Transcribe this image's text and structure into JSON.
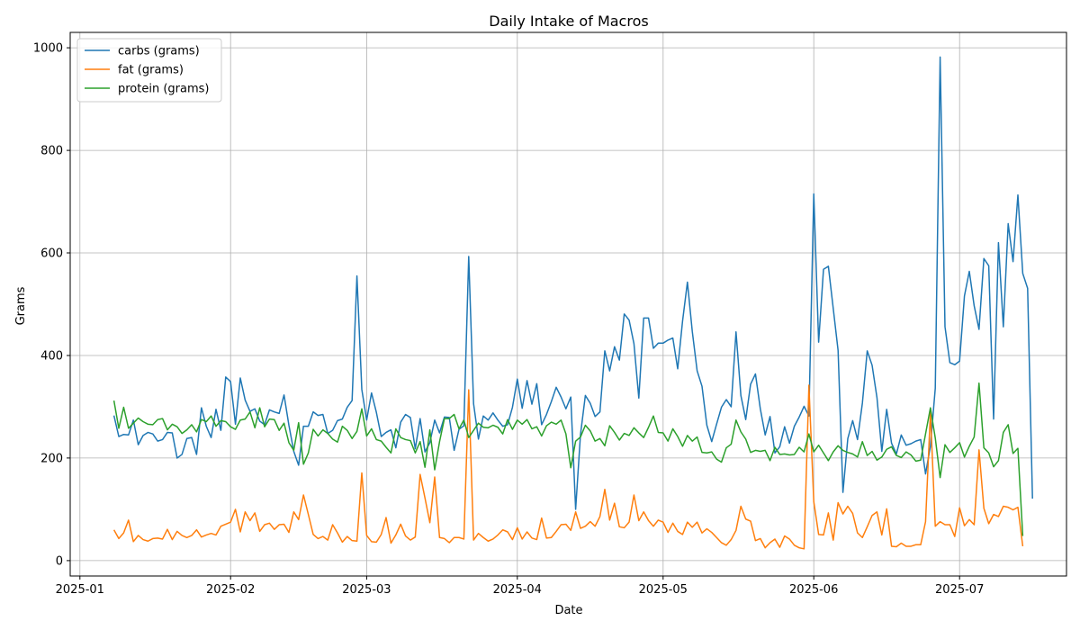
{
  "chart_data": {
    "type": "line",
    "title": "Daily Intake of Macros",
    "xlabel": "Date",
    "ylabel": "Grams",
    "x_start": "2025-01-08",
    "x_end": "2025-07-14",
    "xlim": [
      "2024-12-30",
      "2025-07-23"
    ],
    "ylim": [
      -30,
      1030
    ],
    "x_ticks": [
      {
        "date": "2025-01-01",
        "label": "2025-01"
      },
      {
        "date": "2025-02-01",
        "label": "2025-02"
      },
      {
        "date": "2025-03-01",
        "label": "2025-03"
      },
      {
        "date": "2025-04-01",
        "label": "2025-04"
      },
      {
        "date": "2025-05-01",
        "label": "2025-05"
      },
      {
        "date": "2025-06-01",
        "label": "2025-06"
      },
      {
        "date": "2025-07-01",
        "label": "2025-07"
      }
    ],
    "y_ticks": [
      0,
      200,
      400,
      600,
      800,
      1000
    ],
    "grid": true,
    "legend_position": "top-left",
    "series": [
      {
        "name": "carbs (grams)",
        "color": "#1f77b4",
        "values": [
          283,
          242,
          246,
          245,
          274,
          226,
          244,
          250,
          247,
          233,
          236,
          250,
          249,
          200,
          207,
          238,
          240,
          207,
          298,
          262,
          240,
          295,
          254,
          358,
          349,
          266,
          356,
          313,
          291,
          296,
          272,
          265,
          294,
          290,
          287,
          323,
          264,
          213,
          186,
          262,
          262,
          290,
          283,
          285,
          248,
          254,
          273,
          276,
          299,
          312,
          555,
          334,
          274,
          327,
          289,
          242,
          250,
          255,
          220,
          270,
          285,
          279,
          218,
          277,
          212,
          230,
          274,
          249,
          280,
          279,
          215,
          256,
          263,
          593,
          306,
          237,
          282,
          274,
          288,
          274,
          262,
          265,
          299,
          354,
          297,
          351,
          305,
          345,
          265,
          285,
          310,
          338,
          319,
          296,
          319,
          100,
          246,
          322,
          307,
          281,
          290,
          409,
          370,
          417,
          391,
          481,
          469,
          423,
          317,
          473,
          473,
          414,
          424,
          424,
          430,
          434,
          374,
          467,
          543,
          447,
          370,
          340,
          264,
          232,
          266,
          299,
          314,
          300,
          446,
          322,
          275,
          344,
          364,
          296,
          245,
          281,
          210,
          222,
          261,
          229,
          262,
          280,
          301,
          282,
          715,
          426,
          568,
          574,
          492,
          410,
          133,
          238,
          273,
          236,
          307,
          409,
          381,
          318,
          213,
          295,
          229,
          208,
          245,
          225,
          228,
          233,
          236,
          169,
          223,
          336,
          982,
          456,
          386,
          382,
          389,
          516,
          564,
          497,
          451,
          589,
          575,
          276,
          620,
          456,
          657,
          583,
          713,
          560,
          531,
          121
        ]
      },
      {
        "name": "fat (grams)",
        "color": "#ff7f0e",
        "values": [
          60,
          43,
          54,
          79,
          37,
          49,
          41,
          38,
          43,
          44,
          42,
          61,
          41,
          57,
          49,
          45,
          49,
          60,
          46,
          50,
          53,
          50,
          67,
          71,
          75,
          100,
          56,
          95,
          78,
          93,
          57,
          70,
          73,
          61,
          70,
          71,
          55,
          95,
          80,
          128,
          90,
          51,
          43,
          47,
          40,
          70,
          54,
          36,
          47,
          39,
          38,
          171,
          49,
          37,
          36,
          51,
          84,
          34,
          50,
          71,
          48,
          40,
          46,
          168,
          122,
          74,
          163,
          45,
          43,
          35,
          45,
          45,
          42,
          333,
          40,
          53,
          45,
          38,
          42,
          50,
          60,
          56,
          41,
          64,
          42,
          56,
          44,
          41,
          83,
          44,
          45,
          57,
          70,
          71,
          59,
          95,
          63,
          67,
          76,
          67,
          86,
          139,
          79,
          112,
          66,
          64,
          75,
          128,
          78,
          95,
          78,
          67,
          79,
          75,
          55,
          73,
          57,
          51,
          75,
          65,
          75,
          54,
          62,
          55,
          45,
          35,
          30,
          41,
          59,
          106,
          81,
          77,
          39,
          43,
          25,
          35,
          42,
          26,
          48,
          42,
          30,
          25,
          23,
          342,
          115,
          51,
          50,
          93,
          40,
          113,
          91,
          106,
          92,
          54,
          45,
          66,
          88,
          95,
          50,
          101,
          28,
          27,
          34,
          28,
          28,
          31,
          31,
          76,
          289,
          67,
          76,
          70,
          70,
          47,
          103,
          68,
          80,
          70,
          216,
          102,
          72,
          90,
          86,
          106,
          104,
          99,
          104,
          28
        ]
      },
      {
        "name": "protein (grams)",
        "color": "#2ca02c",
        "values": [
          312,
          258,
          299,
          258,
          268,
          278,
          271,
          266,
          265,
          275,
          277,
          255,
          266,
          261,
          248,
          255,
          265,
          251,
          275,
          271,
          282,
          262,
          273,
          271,
          261,
          256,
          274,
          276,
          290,
          259,
          298,
          261,
          276,
          275,
          254,
          268,
          230,
          215,
          269,
          188,
          210,
          256,
          243,
          255,
          248,
          237,
          231,
          262,
          254,
          238,
          252,
          296,
          243,
          257,
          236,
          233,
          221,
          210,
          257,
          240,
          236,
          234,
          210,
          232,
          182,
          255,
          177,
          232,
          277,
          277,
          285,
          257,
          274,
          240,
          254,
          268,
          260,
          259,
          264,
          260,
          247,
          275,
          256,
          274,
          266,
          275,
          257,
          261,
          243,
          263,
          270,
          266,
          274,
          247,
          181,
          233,
          241,
          264,
          253,
          233,
          238,
          224,
          263,
          250,
          235,
          248,
          244,
          259,
          249,
          240,
          260,
          282,
          250,
          249,
          233,
          257,
          242,
          223,
          244,
          233,
          241,
          211,
          210,
          212,
          198,
          192,
          220,
          227,
          274,
          251,
          237,
          211,
          215,
          213,
          215,
          195,
          221,
          207,
          208,
          206,
          207,
          221,
          212,
          247,
          212,
          225,
          210,
          195,
          212,
          224,
          215,
          211,
          208,
          202,
          232,
          205,
          213,
          196,
          202,
          217,
          222,
          205,
          201,
          212,
          206,
          194,
          196,
          247,
          298,
          239,
          162,
          226,
          211,
          220,
          230,
          202,
          223,
          241,
          346,
          220,
          210,
          183,
          195,
          250,
          265,
          209,
          219,
          48
        ]
      }
    ]
  }
}
